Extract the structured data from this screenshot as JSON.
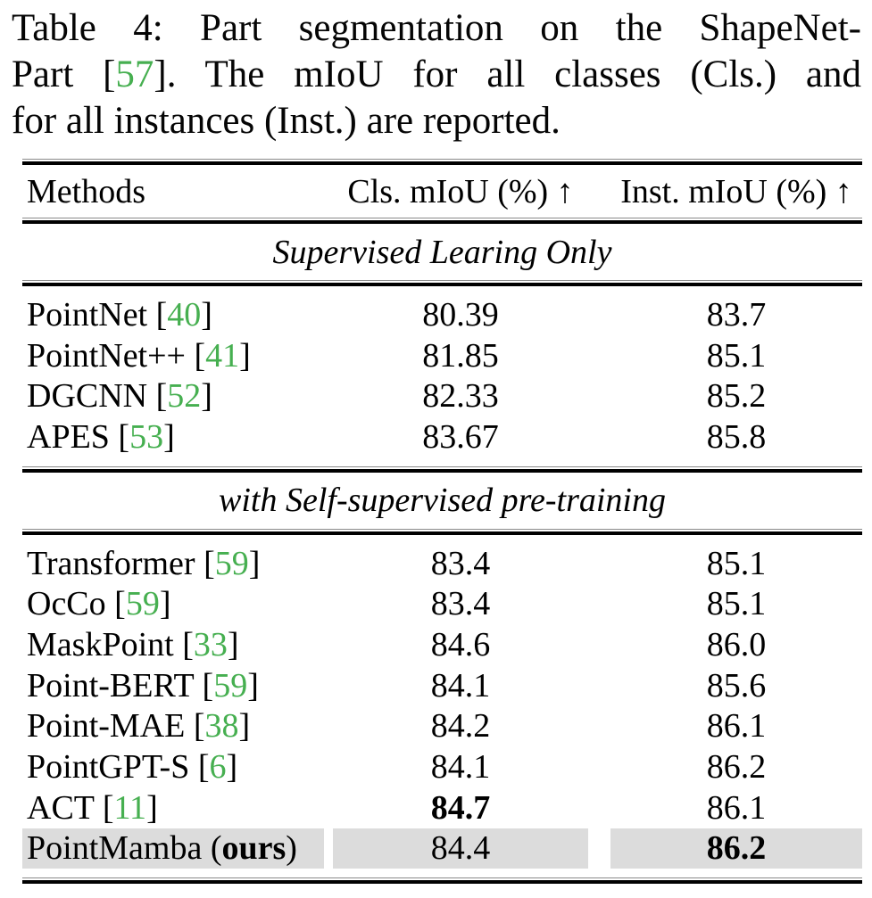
{
  "colors": {
    "cite_green": "#46AF50",
    "highlight_gray": "#DCDCDC",
    "text_black": "#000000"
  },
  "caption": {
    "line1": "Table 4: Part segmentation on the ShapeNet-",
    "line2_pre": "Part [",
    "line2_cite": "57",
    "line2_post": "]. The mIoU for all classes (Cls.) and",
    "line3": "for all instances (Inst.) are reported."
  },
  "table": {
    "header": {
      "methods": "Methods",
      "cls": "Cls. mIoU (%) ↑",
      "inst": "Inst. mIoU (%) ↑"
    },
    "sections": [
      {
        "title": "Supervised Learing Only",
        "rows": [
          {
            "name_pre": "PointNet [",
            "cite": "40",
            "name_post": "]",
            "cls": "80.39",
            "inst": "83.7"
          },
          {
            "name_pre": "PointNet++ [",
            "cite": "41",
            "name_post": "]",
            "cls": "81.85",
            "inst": "85.1"
          },
          {
            "name_pre": "DGCNN [",
            "cite": "52",
            "name_post": "]",
            "cls": "82.33",
            "inst": "85.2"
          },
          {
            "name_pre": "APES [",
            "cite": "53",
            "name_post": "]",
            "cls": "83.67",
            "inst": "85.8"
          }
        ]
      },
      {
        "title": "with Self-supervised pre-training",
        "rows": [
          {
            "name_pre": "Transformer [",
            "cite": "59",
            "name_post": "]",
            "cls": "83.4",
            "inst": "85.1"
          },
          {
            "name_pre": "OcCo [",
            "cite": "59",
            "name_post": "]",
            "cls": "83.4",
            "inst": "85.1"
          },
          {
            "name_pre": "MaskPoint [",
            "cite": "33",
            "name_post": "]",
            "cls": "84.6",
            "inst": "86.0"
          },
          {
            "name_pre": "Point-BERT [",
            "cite": "59",
            "name_post": "]",
            "cls": "84.1",
            "inst": "85.6"
          },
          {
            "name_pre": "Point-MAE [",
            "cite": "38",
            "name_post": "]",
            "cls": "84.2",
            "inst": "86.1"
          },
          {
            "name_pre": "PointGPT-S [",
            "cite": "6",
            "name_post": "]",
            "cls": "84.1",
            "inst": "86.2"
          },
          {
            "name_pre": "ACT [",
            "cite": "11",
            "name_post": "]",
            "cls": "84.7",
            "inst": "86.1",
            "bold_cls": true
          },
          {
            "name_pre": "PointMamba (",
            "name_bold": "ours",
            "name_post": ")",
            "cls": "84.4",
            "inst": "86.2",
            "bold_inst": true,
            "highlight": true
          }
        ]
      }
    ]
  }
}
